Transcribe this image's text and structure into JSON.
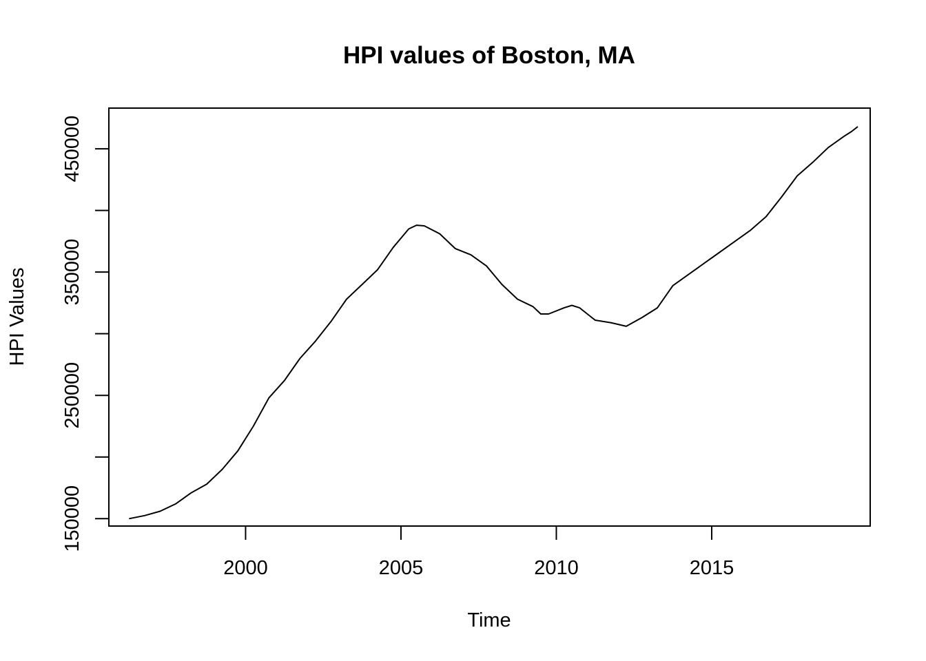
{
  "chart_data": {
    "type": "line",
    "title": "HPI values of Boston, MA",
    "xlabel": "Time",
    "ylabel": "HPI Values",
    "xlim": [
      1995.6,
      2020.1
    ],
    "ylim": [
      144000,
      483000
    ],
    "grid": false,
    "legend": "none",
    "x_ticks": [
      {
        "value": 2000,
        "label": "2000"
      },
      {
        "value": 2005,
        "label": "2005"
      },
      {
        "value": 2010,
        "label": "2010"
      },
      {
        "value": 2015,
        "label": "2015"
      }
    ],
    "y_ticks": [
      {
        "value": 150000,
        "label": "150000"
      },
      {
        "value": 200000,
        "label": ""
      },
      {
        "value": 250000,
        "label": "250000"
      },
      {
        "value": 300000,
        "label": ""
      },
      {
        "value": 350000,
        "label": "350000"
      },
      {
        "value": 400000,
        "label": ""
      },
      {
        "value": 450000,
        "label": "450000"
      }
    ],
    "series": [
      {
        "color": "#000000",
        "points": [
          [
            1996.25,
            150000
          ],
          [
            1996.75,
            152500
          ],
          [
            1997.25,
            156000
          ],
          [
            1997.75,
            162000
          ],
          [
            1998.25,
            171000
          ],
          [
            1998.75,
            178000
          ],
          [
            1999.25,
            190000
          ],
          [
            1999.75,
            205000
          ],
          [
            2000.25,
            225000
          ],
          [
            2000.75,
            248000
          ],
          [
            2001.25,
            262000
          ],
          [
            2001.75,
            280000
          ],
          [
            2002.25,
            294000
          ],
          [
            2002.75,
            310000
          ],
          [
            2003.25,
            328000
          ],
          [
            2003.75,
            340000
          ],
          [
            2004.25,
            352000
          ],
          [
            2004.75,
            370000
          ],
          [
            2005.25,
            385000
          ],
          [
            2005.5,
            388000
          ],
          [
            2005.75,
            387500
          ],
          [
            2006.25,
            381000
          ],
          [
            2006.75,
            369000
          ],
          [
            2007.25,
            364000
          ],
          [
            2007.75,
            355000
          ],
          [
            2008.25,
            340000
          ],
          [
            2008.75,
            328000
          ],
          [
            2009.25,
            322000
          ],
          [
            2009.5,
            316000
          ],
          [
            2009.75,
            316000
          ],
          [
            2010.25,
            321000
          ],
          [
            2010.5,
            323000
          ],
          [
            2010.75,
            321000
          ],
          [
            2011.25,
            311000
          ],
          [
            2011.75,
            309000
          ],
          [
            2012.25,
            306000
          ],
          [
            2012.75,
            313000
          ],
          [
            2013.25,
            321000
          ],
          [
            2013.75,
            339000
          ],
          [
            2014.25,
            348000
          ],
          [
            2014.75,
            357000
          ],
          [
            2015.25,
            366000
          ],
          [
            2015.75,
            375000
          ],
          [
            2016.25,
            384000
          ],
          [
            2016.75,
            395000
          ],
          [
            2017.25,
            411000
          ],
          [
            2017.75,
            428000
          ],
          [
            2018.25,
            439000
          ],
          [
            2018.75,
            451000
          ],
          [
            2019.25,
            460000
          ],
          [
            2019.5,
            464000
          ],
          [
            2019.7,
            468000
          ]
        ]
      }
    ]
  }
}
